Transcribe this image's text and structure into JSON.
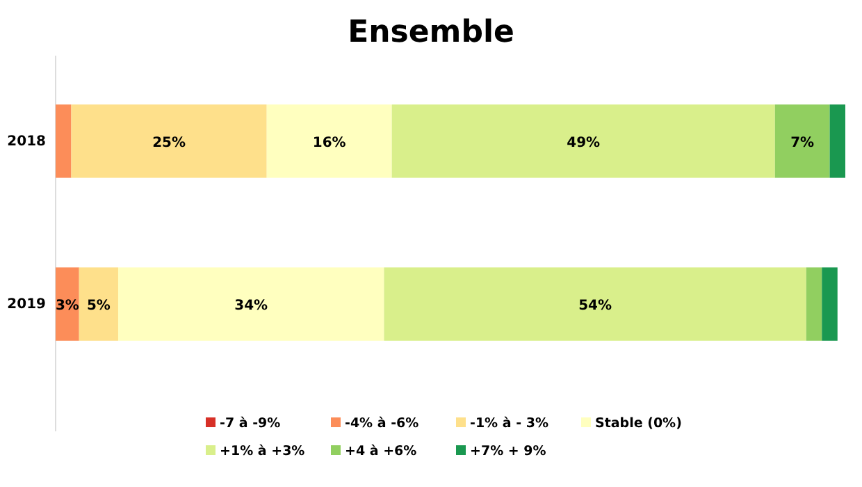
{
  "chart_data": {
    "type": "bar",
    "title": "Ensemble",
    "orientation": "horizontal",
    "stacked": true,
    "legend": "bottom",
    "categories": [
      "2018",
      "2019"
    ],
    "series": [
      {
        "name": "-7 à -9%",
        "color": "#d73027",
        "values": [
          0,
          0
        ],
        "value_labels": [
          null,
          null
        ]
      },
      {
        "name": "-4% à -6%",
        "color": "#fc8d59",
        "values": [
          2,
          3
        ],
        "value_labels": [
          null,
          "3%"
        ]
      },
      {
        "name": "-1% à - 3%",
        "color": "#fee08b",
        "values": [
          25,
          5
        ],
        "value_labels": [
          "25%",
          "5%"
        ]
      },
      {
        "name": "Stable (0%)",
        "color": "#ffffbf",
        "values": [
          16,
          34
        ],
        "value_labels": [
          "16%",
          "34%"
        ]
      },
      {
        "name": "+1% à +3%",
        "color": "#d9ef8b",
        "values": [
          49,
          54
        ],
        "value_labels": [
          "49%",
          "54%"
        ]
      },
      {
        "name": "+4 à +6%",
        "color": "#91cf60",
        "values": [
          7,
          2
        ],
        "value_labels": [
          "7%",
          null
        ]
      },
      {
        "name": "+7% + 9%",
        "color": "#1a9850",
        "values": [
          2,
          2
        ],
        "value_labels": [
          null,
          null
        ]
      }
    ]
  }
}
